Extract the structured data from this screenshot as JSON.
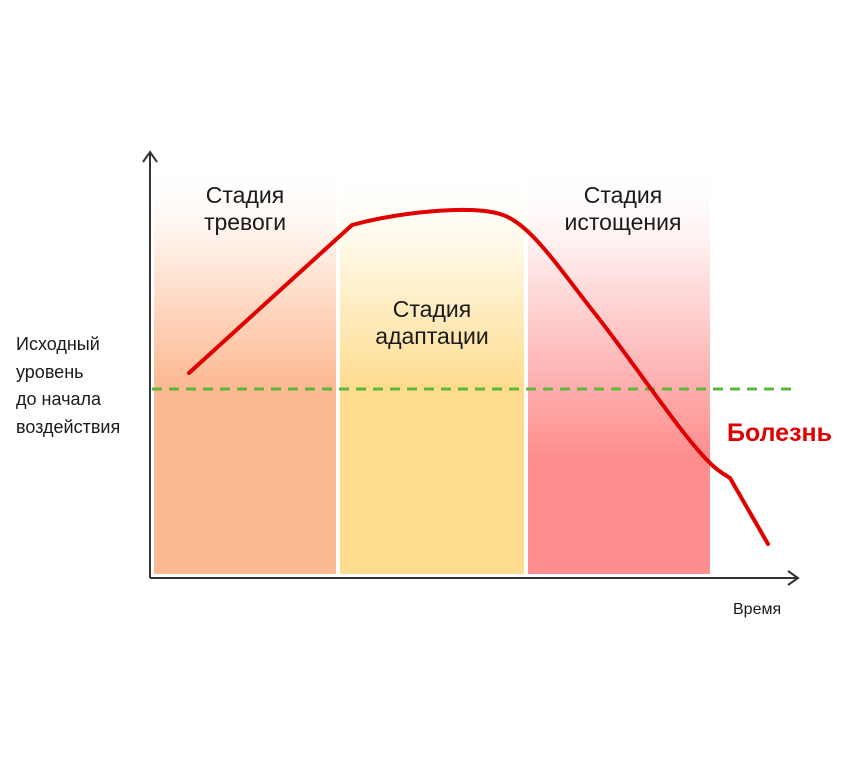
{
  "stages": [
    {
      "label": "Стадия\nтревоги",
      "color_top": "#ffffff",
      "color_bottom": "#fdb992"
    },
    {
      "label": "Стадия\nадаптации",
      "color_top": "#ffffff",
      "color_bottom": "#fddc8f"
    },
    {
      "label": "Стадия\nистощения",
      "color_top": "#ffffff",
      "color_bottom": "#fe8d8d"
    }
  ],
  "baseline_label": "Исходный\nуровень\nдо начала\nвоздействия",
  "x_axis_label": "Время",
  "outcome_label": "Болезнь",
  "colors": {
    "curve": "#e10000",
    "baseline": "#5cb83a",
    "axis": "#333333",
    "outcome": "#e10000"
  }
}
